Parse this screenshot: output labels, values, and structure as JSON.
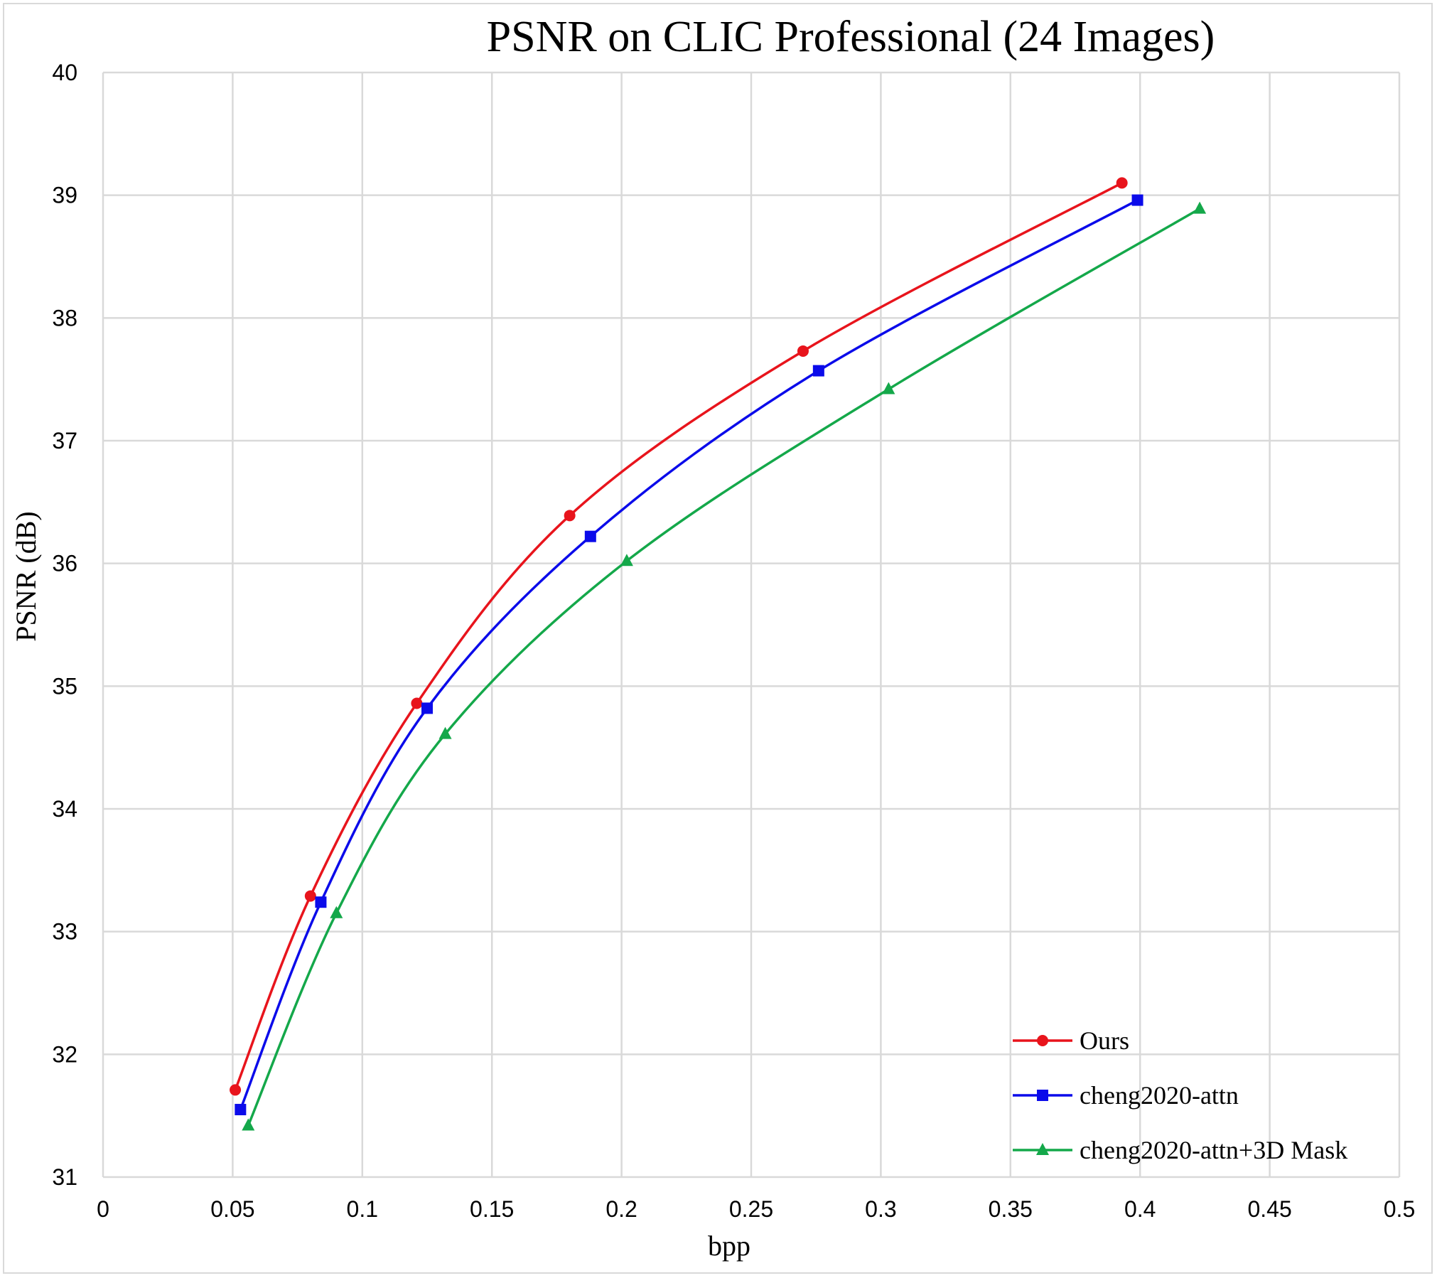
{
  "chart_data": {
    "type": "line",
    "title": "PSNR on CLIC Professional (24 Images)",
    "xlabel": "bpp",
    "ylabel": "PSNR (dB)",
    "xlim": [
      0,
      0.5
    ],
    "ylim": [
      31,
      40
    ],
    "xticks": [
      0,
      0.05,
      0.1,
      0.15,
      0.2,
      0.25,
      0.3,
      0.35,
      0.4,
      0.45,
      0.5
    ],
    "xtick_labels": [
      "0",
      "0.05",
      "0.1",
      "0.15",
      "0.2",
      "0.25",
      "0.3",
      "0.35",
      "0.4",
      "0.45",
      "0.5"
    ],
    "yticks": [
      31,
      32,
      33,
      34,
      35,
      36,
      37,
      38,
      39,
      40
    ],
    "ytick_labels": [
      "31",
      "32",
      "33",
      "34",
      "35",
      "36",
      "37",
      "38",
      "39",
      "40"
    ],
    "grid": true,
    "legend_position": "bottom-right",
    "series": [
      {
        "name": "Ours",
        "color": "#e8141c",
        "marker": "circle",
        "x": [
          0.051,
          0.08,
          0.121,
          0.18,
          0.27,
          0.393
        ],
        "y": [
          31.71,
          33.29,
          34.86,
          36.39,
          37.73,
          39.1
        ]
      },
      {
        "name": "cheng2020-attn",
        "color": "#0b0bea",
        "marker": "square",
        "x": [
          0.053,
          0.084,
          0.125,
          0.188,
          0.276,
          0.399
        ],
        "y": [
          31.55,
          33.24,
          34.82,
          36.22,
          37.57,
          38.96
        ]
      },
      {
        "name": "cheng2020-attn+3D Mask",
        "color": "#14a84a",
        "marker": "triangle",
        "x": [
          0.056,
          0.09,
          0.132,
          0.202,
          0.303,
          0.423
        ],
        "y": [
          31.42,
          33.15,
          34.61,
          36.02,
          37.42,
          38.89
        ]
      }
    ]
  }
}
